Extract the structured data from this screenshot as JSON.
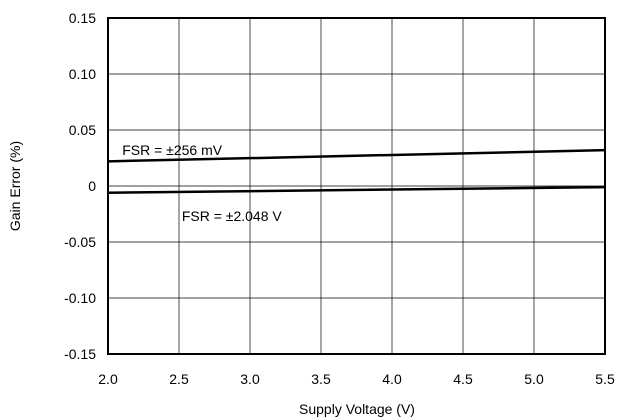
{
  "chart_data": {
    "type": "line",
    "title": "",
    "xlabel": "Supply Voltage (V)",
    "ylabel": "Gain Error (%)",
    "xlim": [
      2.0,
      5.5
    ],
    "ylim": [
      -0.15,
      0.15
    ],
    "grid": true,
    "xticks": [
      "2.0",
      "2.5",
      "3.0",
      "3.5",
      "4.0",
      "4.5",
      "5.0",
      "5.5"
    ],
    "yticks": [
      "0.15",
      "0.10",
      "0.05",
      "0",
      "-0.05",
      "-0.10",
      "-0.15"
    ],
    "xtick_values": [
      2.0,
      2.5,
      3.0,
      3.5,
      4.0,
      4.5,
      5.0,
      5.5
    ],
    "ytick_values": [
      0.15,
      0.1,
      0.05,
      0.0,
      -0.05,
      -0.1,
      -0.15
    ],
    "series": [
      {
        "name": "FSR = ±256 mV",
        "x": [
          2.0,
          5.5
        ],
        "y": [
          0.022,
          0.032
        ],
        "color": "#000000"
      },
      {
        "name": "FSR = ±2.048 V",
        "x": [
          2.0,
          5.5
        ],
        "y": [
          -0.006,
          -0.001
        ],
        "color": "#000000"
      }
    ],
    "annotations": [
      {
        "text": "FSR = ±256 mV",
        "x": 2.1,
        "y": 0.032
      },
      {
        "text": "FSR = ±2.048 V",
        "x": 2.52,
        "y": -0.027
      }
    ]
  }
}
